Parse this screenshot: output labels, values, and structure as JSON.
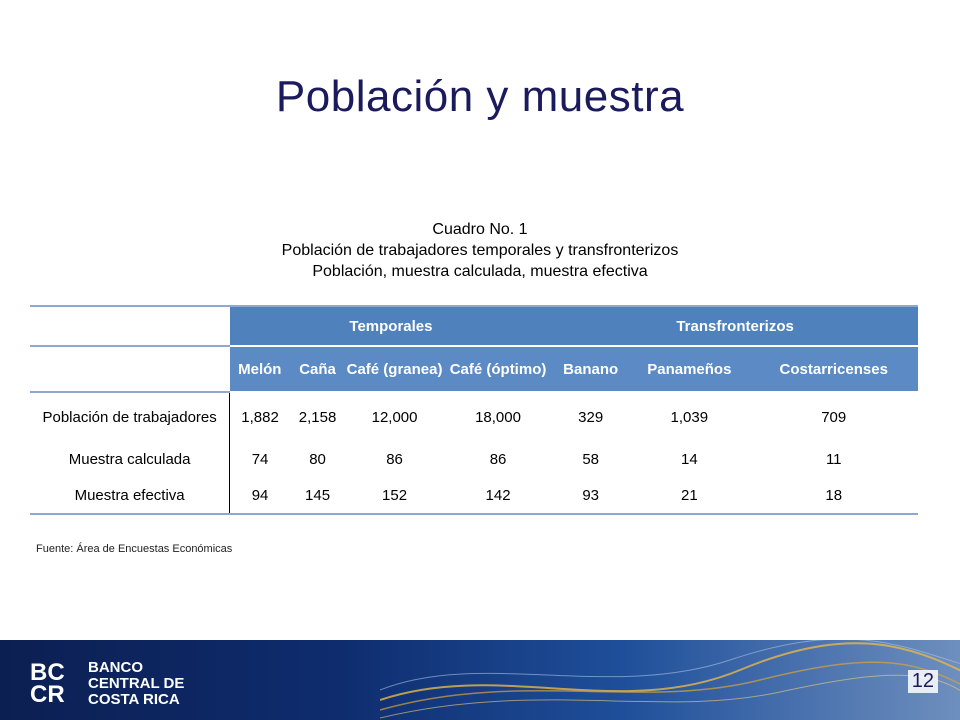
{
  "title": "Población y muestra",
  "caption": {
    "line1": "Cuadro No. 1",
    "line2": "Población de trabajadores temporales y transfronterizos",
    "line3": "Población, muestra calculada, muestra efectiva"
  },
  "table": {
    "group_headers": [
      "Temporales",
      "Transfronterizos"
    ],
    "columns": [
      "Melón",
      "Caña",
      "Café (granea)",
      "Café (óptimo)",
      "Banano",
      "Panameños",
      "Costarricenses"
    ],
    "rows": [
      {
        "label": "Población de trabajadores",
        "values": [
          "1,882",
          "2,158",
          "12,000",
          "18,000",
          "329",
          "1,039",
          "709"
        ]
      },
      {
        "label": "Muestra calculada",
        "values": [
          "74",
          "80",
          "86",
          "86",
          "58",
          "14",
          "11"
        ]
      },
      {
        "label": "Muestra efectiva",
        "values": [
          "94",
          "145",
          "152",
          "142",
          "93",
          "21",
          "18"
        ]
      }
    ]
  },
  "source": "Fuente: Área de Encuestas Económicas",
  "footer": {
    "logo_text": "BC CR",
    "bank_name_lines": [
      "BANCO",
      "CENTRAL DE",
      "COSTA RICA"
    ]
  },
  "page_number": "12",
  "colors": {
    "title": "#1a1a5c",
    "header_blue": "#4f81bd",
    "footer_navy": "#0c1f52"
  }
}
